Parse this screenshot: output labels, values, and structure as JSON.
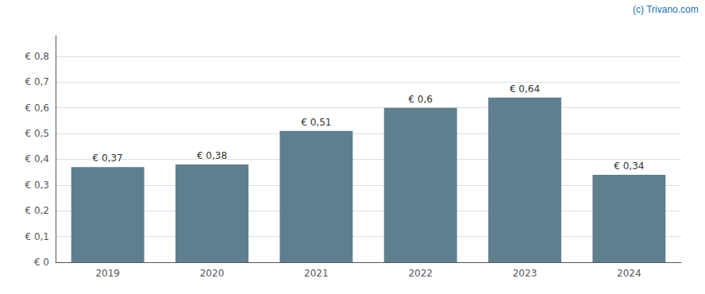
{
  "chart_data": {
    "type": "bar",
    "categories": [
      "2019",
      "2020",
      "2021",
      "2022",
      "2023",
      "2024"
    ],
    "values": [
      0.37,
      0.38,
      0.51,
      0.6,
      0.64,
      0.34
    ],
    "value_labels": [
      "€ 0,37",
      "€ 0,38",
      "€ 0,51",
      "€ 0,6",
      "€ 0,64",
      "€ 0,34"
    ],
    "color": "#5f7f8e",
    "ylim": [
      0,
      0.88
    ],
    "yticks": [
      {
        "value": 0.0,
        "label": "€ 0"
      },
      {
        "value": 0.1,
        "label": "€ 0,1"
      },
      {
        "value": 0.2,
        "label": "€ 0,2"
      },
      {
        "value": 0.3,
        "label": "€ 0,3"
      },
      {
        "value": 0.4,
        "label": "€ 0,4"
      },
      {
        "value": 0.5,
        "label": "€ 0,5"
      },
      {
        "value": 0.6,
        "label": "€ 0,6"
      },
      {
        "value": 0.7,
        "label": "€ 0,7"
      },
      {
        "value": 0.8,
        "label": "€ 0,8"
      }
    ],
    "grid": true,
    "data_labels": true,
    "annotations": [
      "(c) Trivano.com"
    ]
  }
}
